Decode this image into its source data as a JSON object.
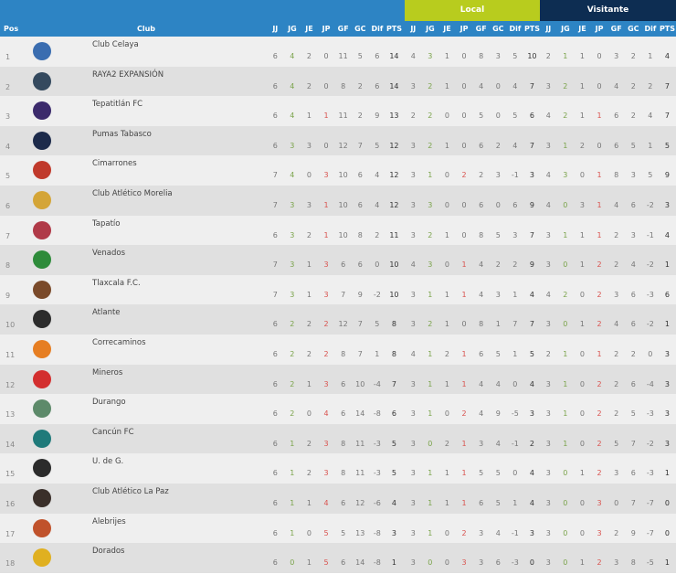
{
  "header": {
    "groups": {
      "local": "Local",
      "visitante": "Visitante"
    },
    "columns": {
      "pos": "Pos",
      "club": "Club"
    },
    "stat_cols": [
      "JJ",
      "JG",
      "JE",
      "JP",
      "GF",
      "GC",
      "Dif",
      "PTS"
    ]
  },
  "colors": {
    "header_blue": "#2d84c4",
    "local_green": "#b8cc1e",
    "visitante_navy": "#0d2d52",
    "dif_band": "#a9c3db",
    "pts_band": "#e2e8b5",
    "win_green": "#7aa34a",
    "loss_red": "#d9534f"
  },
  "rows": [
    {
      "pos": "1",
      "club": "Club Celaya",
      "logo": "#3a6db0",
      "g": [
        "6",
        "4",
        "2",
        "0",
        "11",
        "5",
        "6",
        "14"
      ],
      "l": [
        "4",
        "3",
        "1",
        "0",
        "8",
        "3",
        "5",
        "10"
      ],
      "v": [
        "2",
        "1",
        "1",
        "0",
        "3",
        "2",
        "1",
        "4"
      ]
    },
    {
      "pos": "2",
      "club": "RAYA2 EXPANSIÓN",
      "logo": "#34495e",
      "g": [
        "6",
        "4",
        "2",
        "0",
        "8",
        "2",
        "6",
        "14"
      ],
      "l": [
        "3",
        "2",
        "1",
        "0",
        "4",
        "0",
        "4",
        "7"
      ],
      "v": [
        "3",
        "2",
        "1",
        "0",
        "4",
        "2",
        "2",
        "7"
      ]
    },
    {
      "pos": "3",
      "club": "Tepatitlán FC",
      "logo": "#3b2a6b",
      "g": [
        "6",
        "4",
        "1",
        "1",
        "11",
        "2",
        "9",
        "13"
      ],
      "l": [
        "2",
        "2",
        "0",
        "0",
        "5",
        "0",
        "5",
        "6"
      ],
      "v": [
        "4",
        "2",
        "1",
        "1",
        "6",
        "2",
        "4",
        "7"
      ]
    },
    {
      "pos": "4",
      "club": "Pumas Tabasco",
      "logo": "#1c2a4a",
      "g": [
        "6",
        "3",
        "3",
        "0",
        "12",
        "7",
        "5",
        "12"
      ],
      "l": [
        "3",
        "2",
        "1",
        "0",
        "6",
        "2",
        "4",
        "7"
      ],
      "v": [
        "3",
        "1",
        "2",
        "0",
        "6",
        "5",
        "1",
        "5"
      ]
    },
    {
      "pos": "5",
      "club": "Cimarrones",
      "logo": "#c0392b",
      "g": [
        "7",
        "4",
        "0",
        "3",
        "10",
        "6",
        "4",
        "12"
      ],
      "l": [
        "3",
        "1",
        "0",
        "2",
        "2",
        "3",
        "-1",
        "3"
      ],
      "v": [
        "4",
        "3",
        "0",
        "1",
        "8",
        "3",
        "5",
        "9"
      ]
    },
    {
      "pos": "6",
      "club": "Club Atlético Morelia",
      "logo": "#d4a537",
      "g": [
        "7",
        "3",
        "3",
        "1",
        "10",
        "6",
        "4",
        "12"
      ],
      "l": [
        "3",
        "3",
        "0",
        "0",
        "6",
        "0",
        "6",
        "9"
      ],
      "v": [
        "4",
        "0",
        "3",
        "1",
        "4",
        "6",
        "-2",
        "3"
      ]
    },
    {
      "pos": "7",
      "club": "Tapatío",
      "logo": "#b03a48",
      "g": [
        "6",
        "3",
        "2",
        "1",
        "10",
        "8",
        "2",
        "11"
      ],
      "l": [
        "3",
        "2",
        "1",
        "0",
        "8",
        "5",
        "3",
        "7"
      ],
      "v": [
        "3",
        "1",
        "1",
        "1",
        "2",
        "3",
        "-1",
        "4"
      ]
    },
    {
      "pos": "8",
      "club": "Venados",
      "logo": "#2e8b3a",
      "g": [
        "7",
        "3",
        "1",
        "3",
        "6",
        "6",
        "0",
        "10"
      ],
      "l": [
        "4",
        "3",
        "0",
        "1",
        "4",
        "2",
        "2",
        "9"
      ],
      "v": [
        "3",
        "0",
        "1",
        "2",
        "2",
        "4",
        "-2",
        "1"
      ]
    },
    {
      "pos": "9",
      "club": "Tlaxcala F.C.",
      "logo": "#7a4a2a",
      "g": [
        "7",
        "3",
        "1",
        "3",
        "7",
        "9",
        "-2",
        "10"
      ],
      "l": [
        "3",
        "1",
        "1",
        "1",
        "4",
        "3",
        "1",
        "4"
      ],
      "v": [
        "4",
        "2",
        "0",
        "2",
        "3",
        "6",
        "-3",
        "6"
      ]
    },
    {
      "pos": "10",
      "club": "Atlante",
      "logo": "#2c2c2c",
      "g": [
        "6",
        "2",
        "2",
        "2",
        "12",
        "7",
        "5",
        "8"
      ],
      "l": [
        "3",
        "2",
        "1",
        "0",
        "8",
        "1",
        "7",
        "7"
      ],
      "v": [
        "3",
        "0",
        "1",
        "2",
        "4",
        "6",
        "-2",
        "1"
      ]
    },
    {
      "pos": "11",
      "club": "Correcaminos",
      "logo": "#e67e22",
      "g": [
        "6",
        "2",
        "2",
        "2",
        "8",
        "7",
        "1",
        "8"
      ],
      "l": [
        "4",
        "1",
        "2",
        "1",
        "6",
        "5",
        "1",
        "5"
      ],
      "v": [
        "2",
        "1",
        "0",
        "1",
        "2",
        "2",
        "0",
        "3"
      ]
    },
    {
      "pos": "12",
      "club": "Mineros",
      "logo": "#d32f2f",
      "g": [
        "6",
        "2",
        "1",
        "3",
        "6",
        "10",
        "-4",
        "7"
      ],
      "l": [
        "3",
        "1",
        "1",
        "1",
        "4",
        "4",
        "0",
        "4"
      ],
      "v": [
        "3",
        "1",
        "0",
        "2",
        "2",
        "6",
        "-4",
        "3"
      ]
    },
    {
      "pos": "13",
      "club": "Durango",
      "logo": "#5d8a6a",
      "g": [
        "6",
        "2",
        "0",
        "4",
        "6",
        "14",
        "-8",
        "6"
      ],
      "l": [
        "3",
        "1",
        "0",
        "2",
        "4",
        "9",
        "-5",
        "3"
      ],
      "v": [
        "3",
        "1",
        "0",
        "2",
        "2",
        "5",
        "-3",
        "3"
      ]
    },
    {
      "pos": "14",
      "club": "Cancún FC",
      "logo": "#1f7a7a",
      "g": [
        "6",
        "1",
        "2",
        "3",
        "8",
        "11",
        "-3",
        "5"
      ],
      "l": [
        "3",
        "0",
        "2",
        "1",
        "3",
        "4",
        "-1",
        "2"
      ],
      "v": [
        "3",
        "1",
        "0",
        "2",
        "5",
        "7",
        "-2",
        "3"
      ]
    },
    {
      "pos": "15",
      "club": "U. de G.",
      "logo": "#2b2b2b",
      "g": [
        "6",
        "1",
        "2",
        "3",
        "8",
        "11",
        "-3",
        "5"
      ],
      "l": [
        "3",
        "1",
        "1",
        "1",
        "5",
        "5",
        "0",
        "4"
      ],
      "v": [
        "3",
        "0",
        "1",
        "2",
        "3",
        "6",
        "-3",
        "1"
      ]
    },
    {
      "pos": "16",
      "club": "Club Atlético La Paz",
      "logo": "#3a2f2a",
      "g": [
        "6",
        "1",
        "1",
        "4",
        "6",
        "12",
        "-6",
        "4"
      ],
      "l": [
        "3",
        "1",
        "1",
        "1",
        "6",
        "5",
        "1",
        "4"
      ],
      "v": [
        "3",
        "0",
        "0",
        "3",
        "0",
        "7",
        "-7",
        "0"
      ]
    },
    {
      "pos": "17",
      "club": "Alebrijes",
      "logo": "#c0522b",
      "g": [
        "6",
        "1",
        "0",
        "5",
        "5",
        "13",
        "-8",
        "3"
      ],
      "l": [
        "3",
        "1",
        "0",
        "2",
        "3",
        "4",
        "-1",
        "3"
      ],
      "v": [
        "3",
        "0",
        "0",
        "3",
        "2",
        "9",
        "-7",
        "0"
      ]
    },
    {
      "pos": "18",
      "club": "Dorados",
      "logo": "#e0b020",
      "g": [
        "6",
        "0",
        "1",
        "5",
        "6",
        "14",
        "-8",
        "1"
      ],
      "l": [
        "3",
        "0",
        "0",
        "3",
        "3",
        "6",
        "-3",
        "0"
      ],
      "v": [
        "3",
        "0",
        "1",
        "2",
        "3",
        "8",
        "-5",
        "1"
      ]
    }
  ]
}
